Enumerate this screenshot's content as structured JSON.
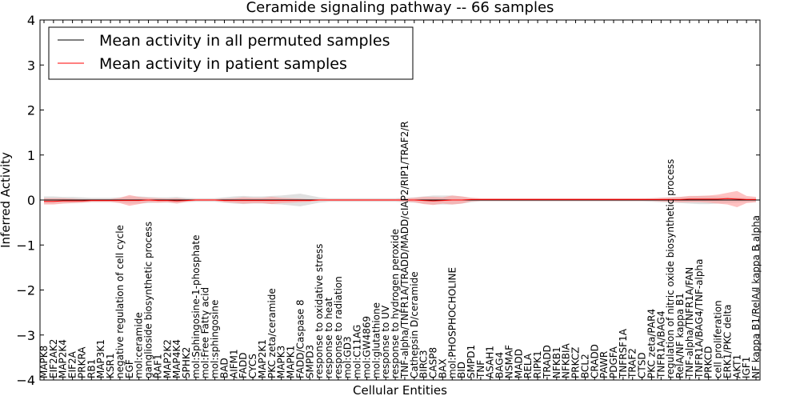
{
  "chart_data": {
    "type": "line",
    "title": "Ceramide signaling pathway -- 66 samples",
    "xlabel": "Cellular Entities",
    "ylabel": "Inferred Activity",
    "ylim": [
      -4,
      4
    ],
    "yticks": [
      -4,
      -3,
      -2,
      -1,
      0,
      1,
      2,
      3,
      4
    ],
    "ytick_labels": [
      "−4",
      "−3",
      "−2",
      "−1",
      "0",
      "1",
      "2",
      "3",
      "4"
    ],
    "grid": false,
    "legend_position": "top-left",
    "categories": [
      "MAPK8",
      "EIF2AK2",
      "MAP2K4",
      "EIF2A",
      "PRKRA",
      "RB1",
      "MAP3K1",
      "KSR1",
      "negative regulation of cell cycle",
      "EGF",
      "mol:ceramide",
      "ganglioside biosynthetic process",
      "RAF1",
      "MAP2K2",
      "MAP4K4",
      "SPHK2",
      "mol:Sphingosine-1-phosphate",
      "mol:Free Fatty acid",
      "mol:sphingosine",
      "BAD",
      "AIFM1",
      "FADD",
      "CYCS",
      "MAP2K1",
      "PKC zeta/ceramide",
      "MAPK3",
      "MAPK1",
      "FADD/Caspase 8",
      "SMPD3",
      "response to oxidative stress",
      "response to heat",
      "response to radiation",
      "mol:GD3",
      "mol:C11AG",
      "mol:GW4869",
      "mol:glutathione",
      "response to UV",
      "response to hydrogen peroxide",
      "TNF-alpha/TNFR1A/TRADD/MADD/cIAP2/RIP1/TRAF2/R",
      "Cathepsin D/ceramide",
      "BIRC3",
      "CASP8",
      "BAX",
      "mol:PHOSPHOCHOLINE",
      "BID",
      "SMPD1",
      "TNF",
      "ASAH1",
      "BAG4",
      "NSMAF",
      "MADD",
      "RELA",
      "RIPK1",
      "TRADD",
      "NFKB1",
      "NFKBIA",
      "PRKCZ",
      "BCL2",
      "CRADD",
      "PAWR",
      "PDGFA",
      "TNFRSF1A",
      "TRAF2",
      "CTSD",
      "PKC zeta/PAR4",
      "TNFR1A/BAG4",
      "regulation of nitric oxide biosynthetic process",
      "RelA/NF kappa B1",
      "TNF-alpha/TNFR1A/FAN",
      "TNFR1A/BAG4/TNF-alpha",
      "PRKCD",
      "cell proliferation",
      "ERK1/PKC delta",
      "AKT1",
      "IGF1",
      "NF kappa B1/RelA/I kappa B alpha"
    ],
    "series": [
      {
        "name": "Mean activity in all permuted samples",
        "color": "#000000",
        "band_color": "#bbbbbb",
        "values": [
          0.0,
          0.0,
          0.0,
          0.0,
          0.0,
          0.0,
          0.0,
          0.0,
          0.0,
          0.0,
          0.0,
          0.0,
          0.0,
          0.0,
          0.0,
          0.0,
          0.0,
          0.0,
          0.0,
          0.0,
          0.0,
          0.0,
          0.0,
          0.0,
          0.0,
          0.0,
          0.0,
          0.0,
          0.0,
          0.0,
          0.0,
          0.0,
          0.0,
          0.0,
          0.0,
          0.0,
          0.0,
          0.0,
          0.0,
          0.0,
          0.0,
          0.0,
          0.0,
          0.0,
          0.0,
          0.0,
          0.0,
          0.0,
          0.0,
          0.0,
          0.0,
          0.0,
          0.0,
          0.0,
          0.0,
          0.0,
          0.0,
          0.0,
          0.0,
          0.0,
          0.0,
          0.0,
          0.0,
          0.0,
          0.0,
          0.0,
          0.0,
          0.0,
          0.0,
          0.0,
          0.0,
          0.0,
          0.0,
          0.0,
          0.0,
          0.0
        ],
        "spread": [
          0.08,
          0.08,
          0.07,
          0.07,
          0.06,
          0.05,
          0.05,
          0.05,
          0.06,
          0.08,
          0.08,
          0.07,
          0.06,
          0.06,
          0.07,
          0.05,
          0.04,
          0.04,
          0.04,
          0.06,
          0.08,
          0.09,
          0.08,
          0.08,
          0.09,
          0.1,
          0.12,
          0.14,
          0.1,
          0.06,
          0.04,
          0.04,
          0.04,
          0.04,
          0.04,
          0.04,
          0.04,
          0.04,
          0.05,
          0.06,
          0.08,
          0.1,
          0.1,
          0.1,
          0.08,
          0.05,
          0.03,
          0.03,
          0.03,
          0.03,
          0.03,
          0.03,
          0.03,
          0.03,
          0.03,
          0.03,
          0.03,
          0.03,
          0.03,
          0.03,
          0.03,
          0.03,
          0.03,
          0.03,
          0.04,
          0.05,
          0.06,
          0.07,
          0.08,
          0.09,
          0.09,
          0.08,
          0.07,
          0.06,
          0.05,
          0.04
        ]
      },
      {
        "name": "Mean activity in patient samples",
        "color": "#ff0000",
        "band_color": "#ff9999",
        "values": [
          -0.03,
          -0.03,
          -0.02,
          -0.02,
          -0.02,
          -0.01,
          -0.01,
          -0.01,
          -0.01,
          -0.01,
          -0.01,
          0.0,
          -0.01,
          -0.01,
          -0.02,
          -0.01,
          0.0,
          0.0,
          0.0,
          -0.01,
          -0.01,
          -0.01,
          -0.01,
          -0.01,
          -0.01,
          -0.01,
          -0.01,
          -0.01,
          -0.01,
          0.0,
          0.0,
          0.0,
          0.0,
          0.0,
          0.0,
          0.0,
          0.0,
          0.0,
          0.0,
          0.0,
          -0.01,
          -0.02,
          -0.01,
          0.0,
          0.0,
          0.01,
          0.01,
          0.01,
          0.01,
          0.01,
          0.01,
          0.01,
          0.01,
          0.01,
          0.01,
          0.01,
          0.01,
          0.01,
          0.01,
          0.01,
          0.01,
          0.01,
          0.01,
          0.01,
          0.01,
          0.01,
          0.01,
          0.01,
          0.02,
          0.02,
          0.02,
          0.02,
          0.03,
          0.02,
          0.01,
          0.01
        ],
        "spread": [
          0.07,
          0.07,
          0.06,
          0.05,
          0.04,
          0.03,
          0.03,
          0.03,
          0.06,
          0.12,
          0.08,
          0.05,
          0.05,
          0.04,
          0.06,
          0.03,
          0.02,
          0.02,
          0.02,
          0.04,
          0.05,
          0.07,
          0.06,
          0.06,
          0.08,
          0.06,
          0.05,
          0.04,
          0.03,
          0.02,
          0.02,
          0.02,
          0.02,
          0.02,
          0.02,
          0.02,
          0.02,
          0.02,
          0.03,
          0.05,
          0.08,
          0.09,
          0.07,
          0.1,
          0.08,
          0.04,
          0.03,
          0.03,
          0.03,
          0.03,
          0.03,
          0.03,
          0.03,
          0.03,
          0.03,
          0.03,
          0.03,
          0.03,
          0.03,
          0.03,
          0.03,
          0.03,
          0.03,
          0.03,
          0.03,
          0.04,
          0.05,
          0.06,
          0.07,
          0.07,
          0.08,
          0.1,
          0.13,
          0.18,
          0.08,
          0.06
        ]
      }
    ]
  }
}
